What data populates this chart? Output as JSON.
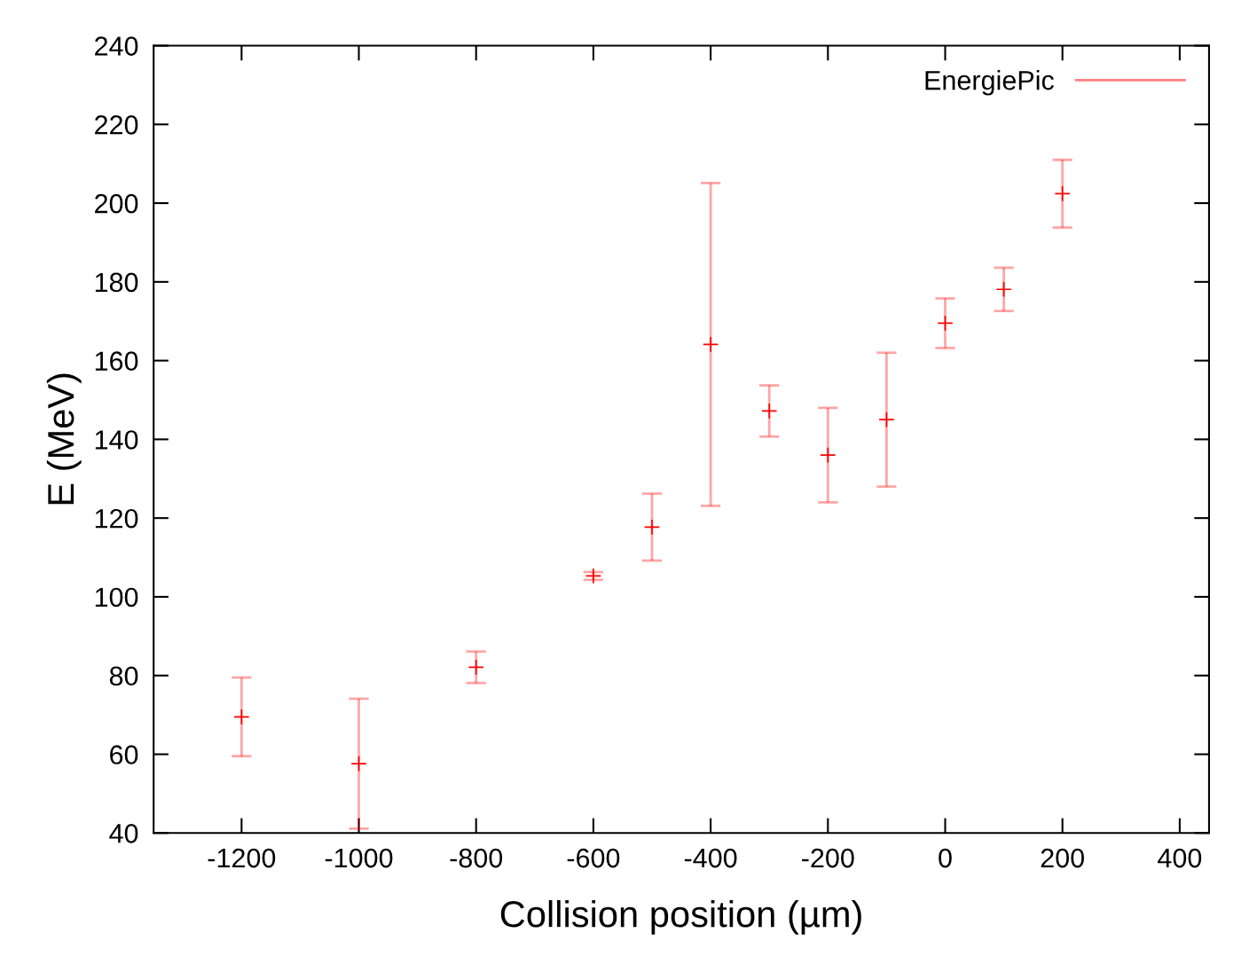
{
  "chart_data": {
    "type": "scatter",
    "xlabel": "Collision position (µm)",
    "ylabel": "E (MeV)",
    "x": [
      -1200,
      -1000,
      -800,
      -600,
      -500,
      -400,
      -300,
      -200,
      -100,
      0,
      100,
      200
    ],
    "series": [
      {
        "name": "EnergiePic",
        "color": "#ff0000",
        "values": [
          69.5,
          57.6,
          82.1,
          105.3,
          117.7,
          164.1,
          147.2,
          136,
          145,
          169.5,
          178.1,
          202.4
        ],
        "errors": [
          10,
          16.5,
          4,
          1,
          8.5,
          41,
          6.5,
          12,
          17,
          6.3,
          5.5,
          8.6
        ]
      }
    ],
    "xlim": [
      -1350,
      450
    ],
    "xticks": [
      -1200,
      -1000,
      -800,
      -600,
      -400,
      -200,
      0,
      200,
      400
    ],
    "ylim": [
      40,
      240
    ],
    "yticks": [
      40,
      60,
      80,
      100,
      120,
      140,
      160,
      180,
      200,
      220,
      240
    ],
    "marker": "cross",
    "legend": "top right",
    "grid": false
  }
}
